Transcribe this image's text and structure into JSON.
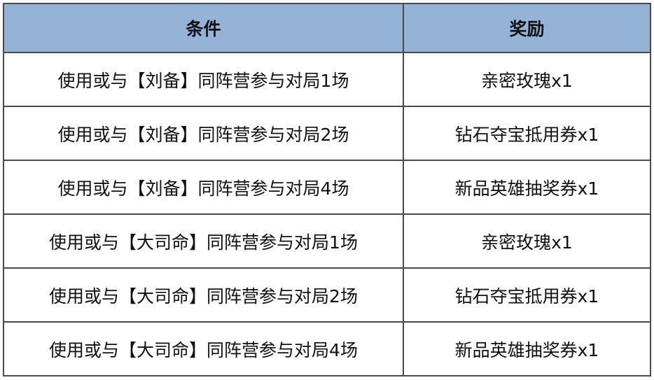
{
  "header": {
    "condition": "条件",
    "reward": "奖励"
  },
  "rows": [
    {
      "condition": "使用或与【刘备】同阵营参与对局1场",
      "reward": "亲密玫瑰x1"
    },
    {
      "condition": "使用或与【刘备】同阵营参与对局2场",
      "reward": "钻石夺宝抵用券x1"
    },
    {
      "condition": "使用或与【刘备】同阵营参与对局4场",
      "reward": "新品英雄抽奖券x1"
    },
    {
      "condition": "使用或与【大司命】同阵营参与对局1场",
      "reward": "亲密玫瑰x1"
    },
    {
      "condition": "使用或与【大司命】同阵营参与对局2场",
      "reward": "钻石夺宝抵用券x1"
    },
    {
      "condition": "使用或与【大司命】同阵营参与对局4场",
      "reward": "新品英雄抽奖券x1"
    }
  ],
  "colors": {
    "header_bg": "#95b3d7",
    "border": "#4a4a4a"
  }
}
